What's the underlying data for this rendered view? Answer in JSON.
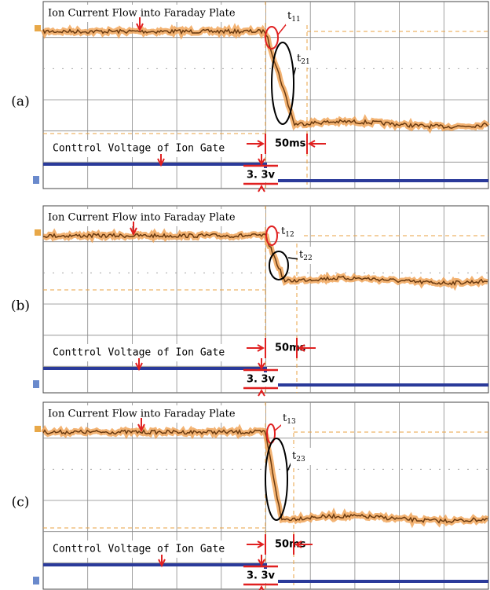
{
  "panels": [
    {
      "label": "(a)",
      "title": "Ion Current Flow into Faraday Plate",
      "t_first": {
        "base": "t",
        "sub": "11"
      },
      "t_second": {
        "base": "t",
        "sub": "21"
      },
      "duration": "50ms",
      "gate_label": "Conttrol Voltage of Ion Gate",
      "voltage": "3. 3v"
    },
    {
      "label": "(b)",
      "title": "Ion Current Flow into Faraday Plate",
      "t_first": {
        "base": "t",
        "sub": "12"
      },
      "t_second": {
        "base": "t",
        "sub": "22"
      },
      "duration": "50ms",
      "gate_label": "Conttrol Voltage of Ion Gate",
      "voltage": "3. 3v"
    },
    {
      "label": "(c)",
      "title": "Ion Current Flow into Faraday Plate",
      "t_first": {
        "base": "t",
        "sub": "13"
      },
      "t_second": {
        "base": "t",
        "sub": "23"
      },
      "duration": "50ms",
      "gate_label": "Conttrol Voltage of Ion Gate",
      "voltage": "3. 3v"
    }
  ]
}
